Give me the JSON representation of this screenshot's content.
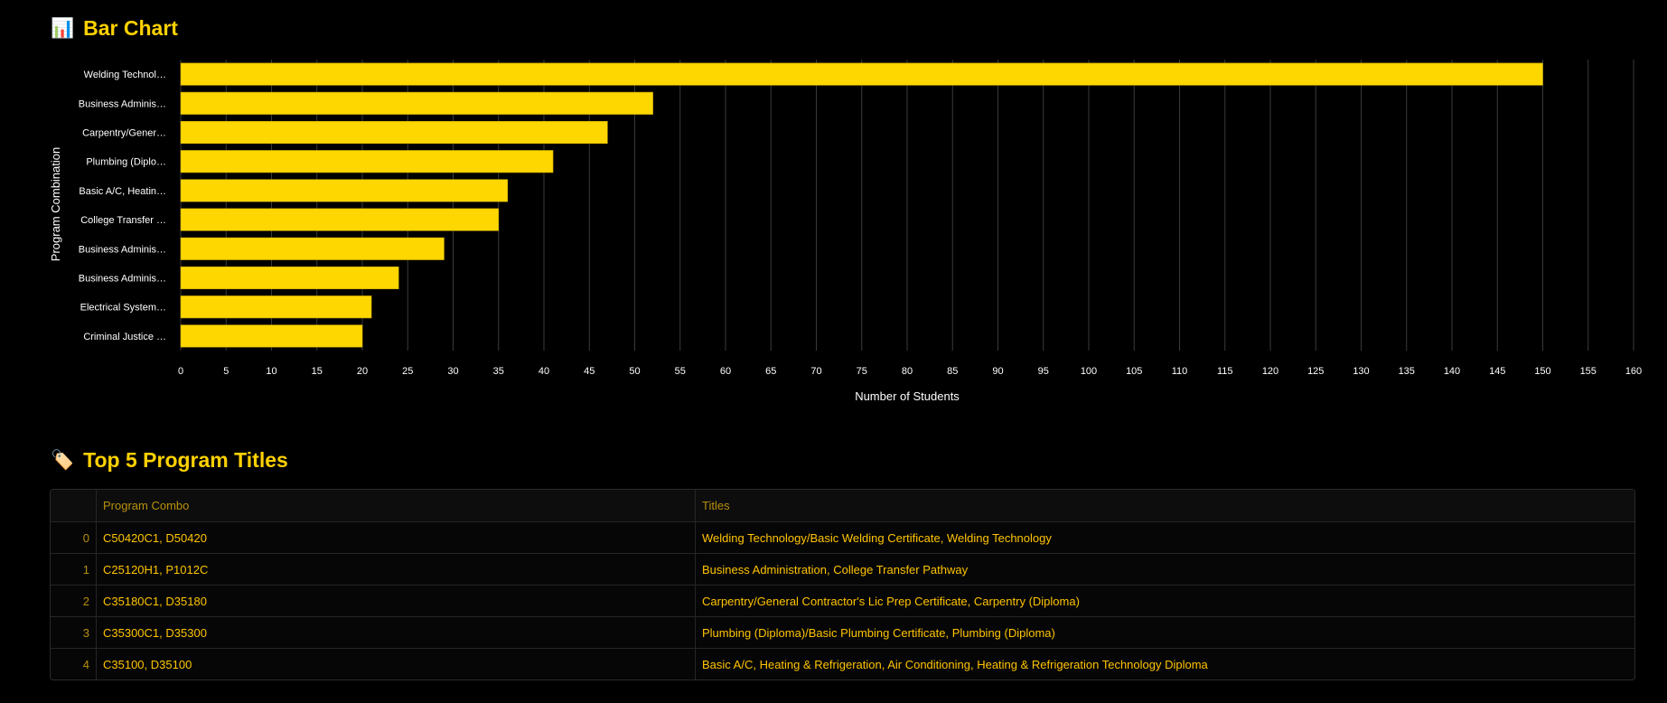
{
  "chart_section": {
    "icon": "bar-chart-icon",
    "title": "Bar Chart"
  },
  "chart_data": {
    "type": "bar",
    "orientation": "horizontal",
    "categories": [
      "Welding Technol…",
      "Business Adminis…",
      "Carpentry/Gener…",
      "Plumbing (Diplo…",
      "Basic A/C, Heatin…",
      "College Transfer …",
      "Business Adminis…",
      "Business Adminis…",
      "Electrical System…",
      "Criminal Justice …"
    ],
    "values": [
      150,
      52,
      47,
      41,
      36,
      35,
      29,
      24,
      21,
      20
    ],
    "xlabel": "Number of Students",
    "ylabel": "Program Combination",
    "xlim": [
      0,
      160
    ],
    "xticks": [
      0,
      5,
      10,
      15,
      20,
      25,
      30,
      35,
      40,
      45,
      50,
      55,
      60,
      65,
      70,
      75,
      80,
      85,
      90,
      95,
      100,
      105,
      110,
      115,
      120,
      125,
      130,
      135,
      140,
      145,
      150,
      155,
      160
    ],
    "grid": true,
    "bar_color": "#FFD700"
  },
  "table_section": {
    "icon": "tag-icon",
    "title": "Top 5 Program Titles",
    "columns": [
      "",
      "Program Combo",
      "Titles"
    ],
    "rows": [
      {
        "index": "0",
        "combo": "C50420C1, D50420",
        "titles": "Welding Technology/Basic Welding Certificate, Welding Technology"
      },
      {
        "index": "1",
        "combo": "C25120H1, P1012C",
        "titles": "Business Administration, College Transfer Pathway"
      },
      {
        "index": "2",
        "combo": "C35180C1, D35180",
        "titles": "Carpentry/General Contractor's Lic Prep Certificate, Carpentry (Diploma)"
      },
      {
        "index": "3",
        "combo": "C35300C1, D35300",
        "titles": "Plumbing (Diploma)/Basic Plumbing Certificate, Plumbing (Diploma)"
      },
      {
        "index": "4",
        "combo": "C35100, D35100",
        "titles": "Basic A/C, Heating & Refrigeration, Air Conditioning, Heating & Refrigeration Technology Diploma"
      }
    ]
  },
  "colors": {
    "background": "#000000",
    "accent": "#FFD100",
    "grid": "#3a3a3a",
    "table_text": "#FFC400",
    "table_header_text": "#B8900C"
  }
}
